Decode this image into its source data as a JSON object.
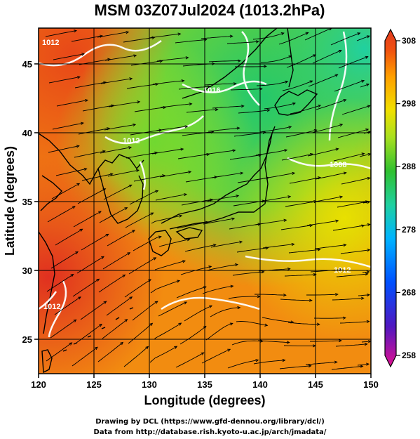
{
  "chart_data": {
    "type": "heatmap",
    "title": "MSM 03Z07Jul2024 (1013.2hPa)",
    "xlabel": "Longitude (degrees)",
    "ylabel": "Latitude  (degrees)",
    "xlim": [
      120,
      150
    ],
    "ylim": [
      22.5,
      47.6
    ],
    "xticks": [
      120,
      125,
      130,
      135,
      140,
      145,
      150
    ],
    "yticks": [
      25,
      30,
      35,
      40,
      45
    ],
    "grid": true,
    "colorbar": {
      "ticks": [
        308,
        298,
        288,
        278,
        268,
        258
      ],
      "range": [
        258,
        308
      ],
      "placement": "right"
    },
    "field_samples": [
      {
        "lon": 122,
        "lat": 45,
        "value": 303
      },
      {
        "lon": 130,
        "lat": 44,
        "value": 298
      },
      {
        "lon": 135,
        "lat": 44,
        "value": 292
      },
      {
        "lon": 142,
        "lat": 46,
        "value": 288
      },
      {
        "lon": 148,
        "lat": 44,
        "value": 287
      },
      {
        "lon": 131,
        "lat": 41,
        "value": 290
      },
      {
        "lon": 125,
        "lat": 38,
        "value": 296
      },
      {
        "lon": 137,
        "lat": 38,
        "value": 292
      },
      {
        "lon": 145,
        "lat": 38,
        "value": 292
      },
      {
        "lon": 123,
        "lat": 35,
        "value": 301
      },
      {
        "lon": 133,
        "lat": 35,
        "value": 301
      },
      {
        "lon": 140,
        "lat": 35,
        "value": 300
      },
      {
        "lon": 147,
        "lat": 34,
        "value": 297
      },
      {
        "lon": 130,
        "lat": 30,
        "value": 301
      },
      {
        "lon": 140,
        "lat": 30,
        "value": 301
      },
      {
        "lon": 148,
        "lat": 30,
        "value": 300
      },
      {
        "lon": 121,
        "lat": 31,
        "value": 305
      },
      {
        "lon": 125,
        "lat": 25,
        "value": 302
      },
      {
        "lon": 135,
        "lat": 26,
        "value": 302
      },
      {
        "lon": 145,
        "lat": 25,
        "value": 302
      }
    ],
    "contour_labels": [
      "1012",
      "1016",
      "1012",
      "1008",
      "1012",
      "1012"
    ]
  },
  "credits": {
    "line1": "Drawing by DCL (https://www.gfd-dennou.org/library/dcl/)",
    "line2": "Data from http://database.rish.kyoto-u.ac.jp/arch/jmadata/"
  },
  "colors": {
    "cmap": [
      "#e01090",
      "#4020c0",
      "#0060ff",
      "#00c8ff",
      "#20d0a0",
      "#30c030",
      "#a0e020",
      "#f0e000",
      "#ffa000",
      "#f05010",
      "#e03a20"
    ]
  }
}
